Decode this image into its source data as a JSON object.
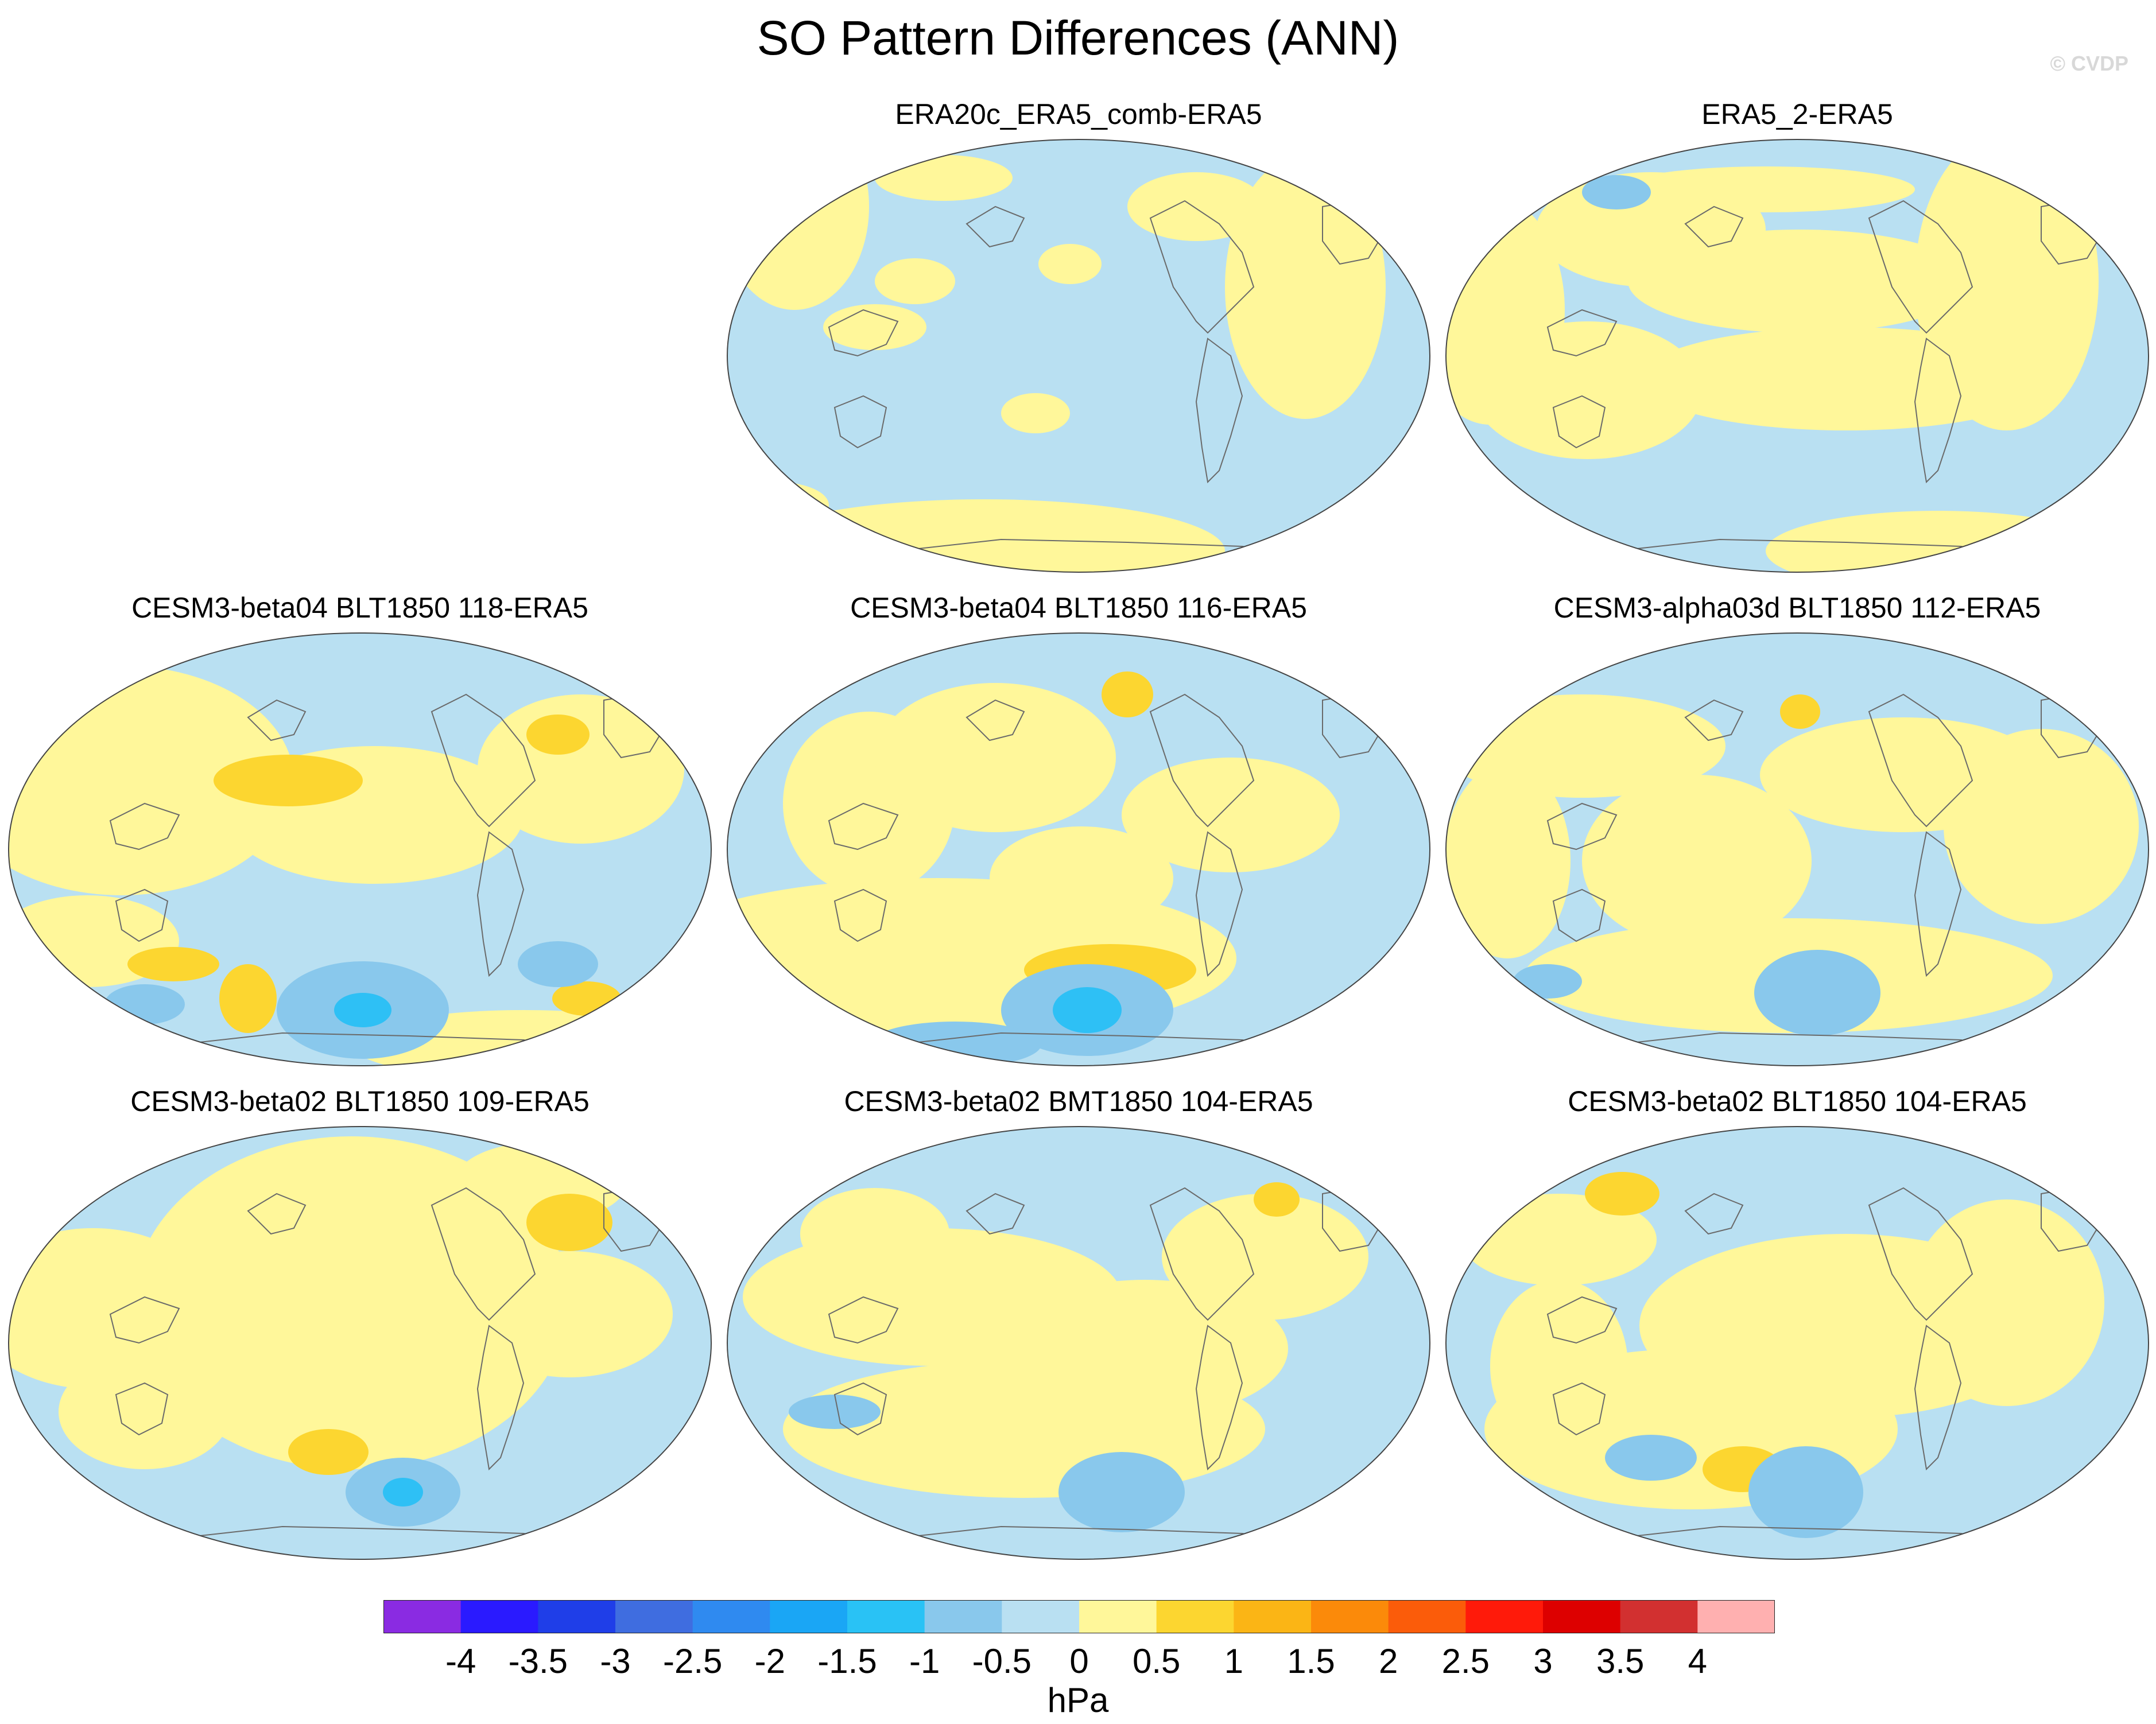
{
  "title": "SO Pattern Differences (ANN)",
  "watermark": "© CVDP",
  "colors": {
    "ocean_base": "#b9e0f2",
    "pos_0_05": "#fff79a",
    "pos_05_1": "#fcd630",
    "neg_05_1": "#89c8ec",
    "neg_1_15": "#2ec0f5",
    "coast": "#6a6a6a"
  },
  "panels": [
    {
      "title": "ERA20c_ERA5_comb-ERA5",
      "pattern": "A"
    },
    {
      "title": "ERA5_2-ERA5",
      "pattern": "B"
    },
    {
      "title": "CESM3-beta04 BLT1850 118-ERA5",
      "pattern": "C"
    },
    {
      "title": "CESM3-beta04 BLT1850 116-ERA5",
      "pattern": "D"
    },
    {
      "title": "CESM3-alpha03d BLT1850 112-ERA5",
      "pattern": "E"
    },
    {
      "title": "CESM3-beta02 BLT1850 109-ERA5",
      "pattern": "F"
    },
    {
      "title": "CESM3-beta02 BMT1850 104-ERA5",
      "pattern": "G"
    },
    {
      "title": "CESM3-beta02 BLT1850 104-ERA5",
      "pattern": "H"
    }
  ],
  "colorbar": {
    "units": "hPa",
    "colors": [
      "#8a2be2",
      "#2a1aff",
      "#1f3ee8",
      "#3f6de0",
      "#2f8af0",
      "#1aa6f5",
      "#29c2f5",
      "#89c8ec",
      "#b9e0f2",
      "#fff79a",
      "#fcd630",
      "#fbb515",
      "#fb8a0a",
      "#fb5c0a",
      "#ff1a0a",
      "#dd0000",
      "#d23030",
      "#ffb0b0"
    ],
    "labels": [
      "-4",
      "-3.5",
      "-3",
      "-2.5",
      "-2",
      "-1.5",
      "-1",
      "-0.5",
      "0",
      "0.5",
      "1",
      "1.5",
      "2",
      "2.5",
      "3",
      "3.5",
      "4"
    ]
  }
}
